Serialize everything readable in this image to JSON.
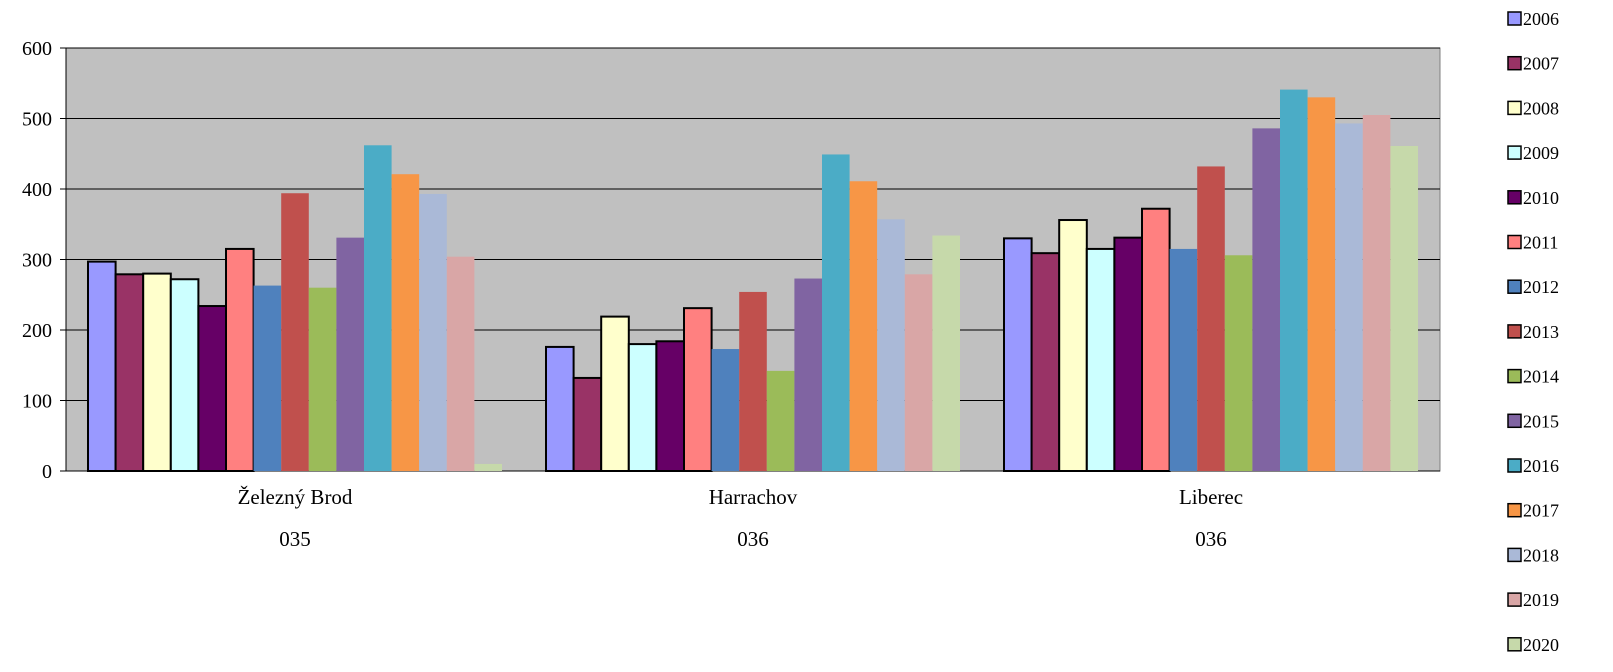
{
  "chart_data": {
    "type": "bar",
    "title": "",
    "xlabel": "",
    "ylabel": "",
    "ylim": [
      0,
      600
    ],
    "yticks": [
      0,
      100,
      200,
      300,
      400,
      500,
      600
    ],
    "grid": true,
    "legend": "right",
    "plot_background": "#c0c0c0",
    "categories": [
      {
        "name": "Železný Brod",
        "code": "035"
      },
      {
        "name": "Harrachov",
        "code": "036"
      },
      {
        "name": "Liberec",
        "code": "036"
      }
    ],
    "series": [
      {
        "name": "2006",
        "color": "#9999ff",
        "outlined": true,
        "values": [
          297,
          176,
          330
        ]
      },
      {
        "name": "2007",
        "color": "#993366",
        "outlined": true,
        "values": [
          279,
          132,
          309
        ]
      },
      {
        "name": "2008",
        "color": "#ffffcc",
        "outlined": true,
        "values": [
          280,
          219,
          356
        ]
      },
      {
        "name": "2009",
        "color": "#ccffff",
        "outlined": true,
        "values": [
          272,
          180,
          315
        ]
      },
      {
        "name": "2010",
        "color": "#660066",
        "outlined": true,
        "values": [
          234,
          184,
          331
        ]
      },
      {
        "name": "2011",
        "color": "#ff8080",
        "outlined": true,
        "values": [
          315,
          231,
          372
        ]
      },
      {
        "name": "2012",
        "color": "#4f81bd",
        "outlined": false,
        "values": [
          263,
          173,
          315
        ]
      },
      {
        "name": "2013",
        "color": "#c0504d",
        "outlined": false,
        "values": [
          394,
          254,
          432
        ]
      },
      {
        "name": "2014",
        "color": "#9bbb59",
        "outlined": false,
        "values": [
          260,
          142,
          306
        ]
      },
      {
        "name": "2015",
        "color": "#8064a2",
        "outlined": false,
        "values": [
          331,
          273,
          486
        ]
      },
      {
        "name": "2016",
        "color": "#4bacc6",
        "outlined": false,
        "values": [
          462,
          449,
          541
        ]
      },
      {
        "name": "2017",
        "color": "#f79646",
        "outlined": false,
        "values": [
          421,
          411,
          530
        ]
      },
      {
        "name": "2018",
        "color": "#aab9d7",
        "outlined": false,
        "values": [
          393,
          357,
          493
        ]
      },
      {
        "name": "2019",
        "color": "#d9a6a6",
        "outlined": false,
        "values": [
          304,
          279,
          505
        ]
      },
      {
        "name": "2020",
        "color": "#c6d9aa",
        "outlined": false,
        "values": [
          10,
          334,
          461
        ]
      }
    ]
  }
}
